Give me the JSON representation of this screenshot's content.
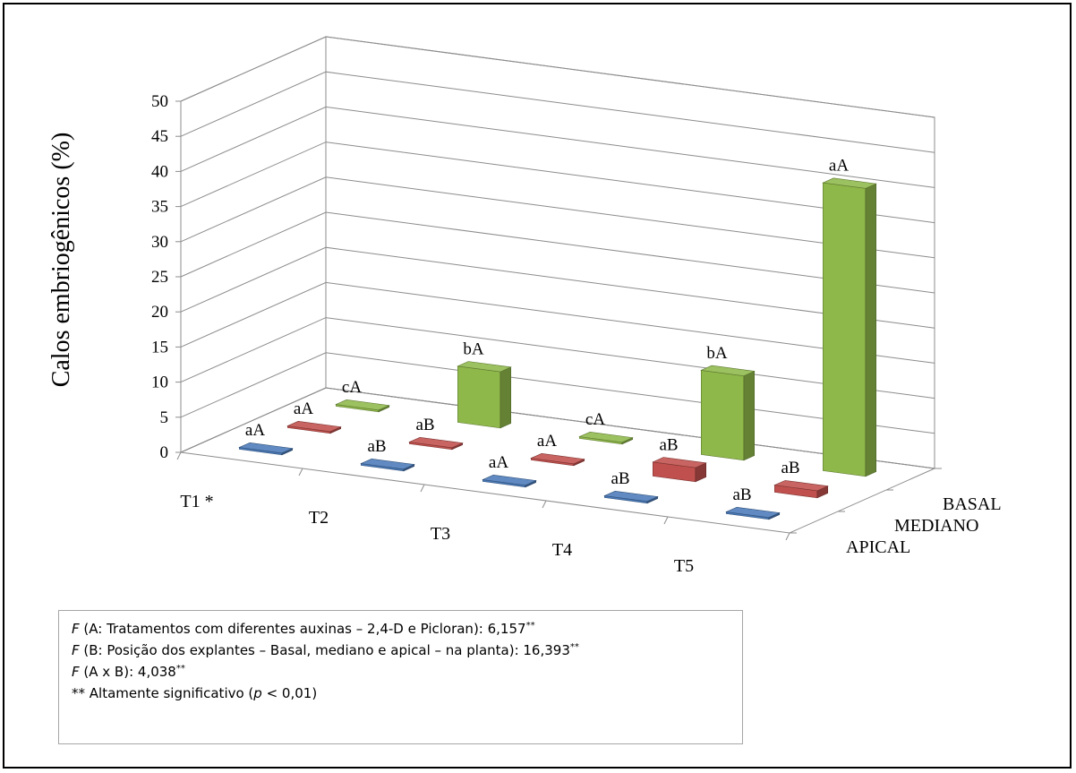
{
  "chart_data": {
    "type": "bar3d",
    "ylabel": "Calos embriogênicos (%)",
    "ylim": [
      0,
      50
    ],
    "yticks": [
      0,
      5,
      10,
      15,
      20,
      25,
      30,
      35,
      40,
      45,
      50
    ],
    "categories": [
      "T1 *",
      "T2",
      "T3",
      "T4",
      "T5"
    ],
    "depth_categories": [
      "APICAL",
      "MEDIANO",
      "BASAL"
    ],
    "grid": true,
    "series": [
      {
        "name": "APICAL",
        "color": "#4a7ab8",
        "values": [
          0,
          0,
          0,
          0,
          0
        ],
        "labels": [
          "aA",
          "aB",
          "aA",
          "aB",
          "aB"
        ]
      },
      {
        "name": "MEDIANO",
        "color": "#c0504d",
        "values": [
          0,
          0,
          0,
          2,
          1
        ],
        "labels": [
          "aA",
          "aB",
          "aA",
          "aB",
          "aB"
        ]
      },
      {
        "name": "BASAL",
        "color": "#8fb84a",
        "values": [
          0,
          8,
          0,
          12,
          41
        ],
        "labels": [
          "cA",
          "bA",
          "cA",
          "bA",
          "aA"
        ]
      }
    ]
  },
  "stats": {
    "line1": {
      "f": "F",
      "text": " (A: Tratamentos com diferentes auxinas – 2,4-D e Picloran): 6,157",
      "sup": "**"
    },
    "line2": {
      "f": "F",
      "text": " (B: Posição dos explantes – Basal, mediano e apical – na planta): 16,393",
      "sup": "**"
    },
    "line3": {
      "f": "F",
      "text": " (A x B): 4,038",
      "sup": "**"
    },
    "line4": {
      "pre": "** Altamente significativo (",
      "p": "p",
      "post": " < 0,01)"
    }
  }
}
